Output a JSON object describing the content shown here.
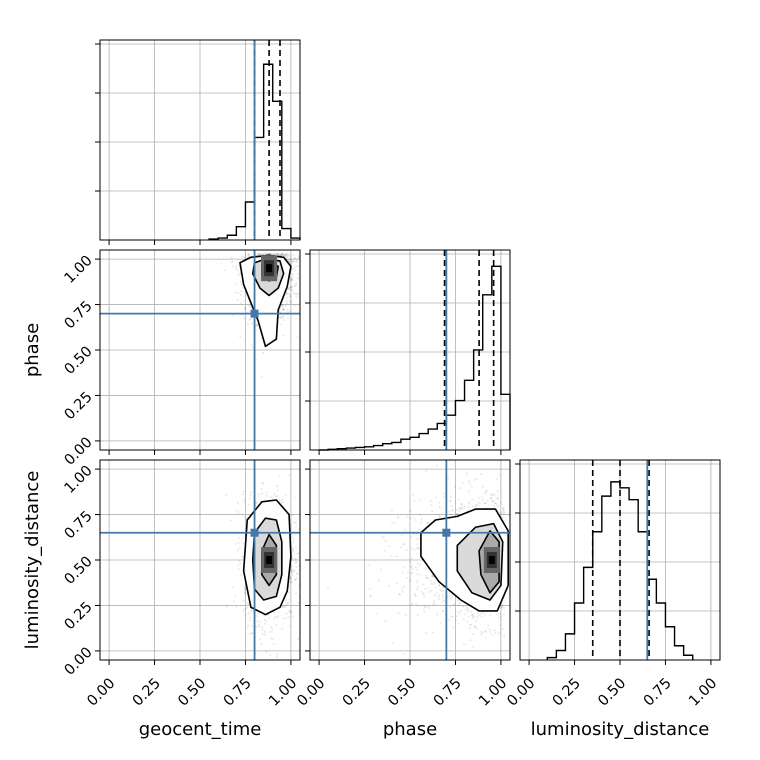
{
  "chart_data": {
    "type": "corner",
    "parameters": [
      "geocent_time",
      "phase",
      "luminosity_distance"
    ],
    "tick_values": [
      0.0,
      0.25,
      0.5,
      0.75,
      1.0
    ],
    "tick_labels": [
      "0.00",
      "0.25",
      "0.50",
      "0.75",
      "1.00"
    ],
    "axis_range": [
      -0.05,
      1.05
    ],
    "grid": true,
    "truth_color": "#4477aa",
    "truths": {
      "geocent_time": 0.8,
      "phase": 0.7,
      "luminosity_distance": 0.65
    },
    "quantiles": {
      "geocent_time": [
        0.8,
        0.88,
        0.94
      ],
      "phase": [
        0.69,
        0.88,
        0.96
      ],
      "luminosity_distance": [
        0.35,
        0.5,
        0.66
      ]
    },
    "histograms": {
      "geocent_time": {
        "edges": [
          0.55,
          0.6,
          0.65,
          0.7,
          0.75,
          0.8,
          0.85,
          0.9,
          0.95,
          1.0,
          1.05
        ],
        "counts": [
          1,
          2,
          5,
          14,
          40,
          108,
          185,
          146,
          12,
          2
        ],
        "ymax": 200
      },
      "phase": {
        "edges": [
          0.0,
          0.05,
          0.1,
          0.15,
          0.2,
          0.25,
          0.3,
          0.35,
          0.4,
          0.45,
          0.5,
          0.55,
          0.6,
          0.65,
          0.7,
          0.75,
          0.8,
          0.85,
          0.9,
          0.95,
          1.0,
          1.05
        ],
        "counts": [
          0,
          1,
          2,
          3,
          4,
          5,
          7,
          10,
          12,
          17,
          20,
          26,
          33,
          42,
          55,
          78,
          110,
          158,
          245,
          290,
          88
        ],
        "ymax": 300
      },
      "luminosity_distance": {
        "edges": [
          0.1,
          0.15,
          0.2,
          0.25,
          0.3,
          0.35,
          0.4,
          0.45,
          0.5,
          0.55,
          0.6,
          0.65,
          0.7,
          0.75,
          0.8,
          0.85,
          0.9
        ],
        "counts": [
          2,
          8,
          22,
          48,
          78,
          108,
          138,
          150,
          145,
          135,
          108,
          68,
          48,
          28,
          12,
          4
        ],
        "ymax": 160
      }
    },
    "scatter_2d": [
      {
        "x": "geocent_time",
        "y": "phase",
        "density_peak": [
          0.88,
          0.95
        ],
        "contours": [
          [
            [
              0.72,
              0.98
            ],
            [
              0.78,
              1.01
            ],
            [
              0.88,
              1.02
            ],
            [
              0.96,
              1.01
            ],
            [
              1.0,
              0.96
            ],
            [
              0.98,
              0.85
            ],
            [
              0.93,
              0.72
            ],
            [
              0.92,
              0.56
            ],
            [
              0.86,
              0.52
            ],
            [
              0.82,
              0.66
            ],
            [
              0.74,
              0.86
            ]
          ],
          [
            [
              0.8,
              0.98
            ],
            [
              0.86,
              1.0
            ],
            [
              0.94,
              0.99
            ],
            [
              0.96,
              0.92
            ],
            [
              0.93,
              0.84
            ],
            [
              0.88,
              0.8
            ],
            [
              0.83,
              0.84
            ],
            [
              0.79,
              0.92
            ]
          ],
          [
            [
              0.84,
              0.97
            ],
            [
              0.89,
              0.98
            ],
            [
              0.93,
              0.96
            ],
            [
              0.92,
              0.9
            ],
            [
              0.88,
              0.88
            ],
            [
              0.84,
              0.91
            ]
          ]
        ]
      },
      {
        "x": "geocent_time",
        "y": "luminosity_distance",
        "density_peak": [
          0.88,
          0.5
        ],
        "contours": [
          [
            [
              0.76,
              0.72
            ],
            [
              0.84,
              0.82
            ],
            [
              0.92,
              0.83
            ],
            [
              0.99,
              0.75
            ],
            [
              1.0,
              0.52
            ],
            [
              0.98,
              0.33
            ],
            [
              0.94,
              0.24
            ],
            [
              0.86,
              0.2
            ],
            [
              0.78,
              0.24
            ],
            [
              0.74,
              0.44
            ]
          ],
          [
            [
              0.8,
              0.65
            ],
            [
              0.86,
              0.73
            ],
            [
              0.92,
              0.72
            ],
            [
              0.95,
              0.6
            ],
            [
              0.95,
              0.42
            ],
            [
              0.92,
              0.3
            ],
            [
              0.85,
              0.28
            ],
            [
              0.8,
              0.34
            ],
            [
              0.79,
              0.5
            ]
          ],
          [
            [
              0.84,
              0.55
            ],
            [
              0.88,
              0.64
            ],
            [
              0.92,
              0.58
            ],
            [
              0.92,
              0.42
            ],
            [
              0.88,
              0.36
            ],
            [
              0.84,
              0.42
            ]
          ]
        ]
      },
      {
        "x": "phase",
        "y": "luminosity_distance",
        "density_peak": [
          0.95,
          0.5
        ],
        "contours": [
          [
            [
              0.56,
              0.65
            ],
            [
              0.64,
              0.72
            ],
            [
              0.76,
              0.74
            ],
            [
              0.86,
              0.78
            ],
            [
              0.97,
              0.78
            ],
            [
              1.04,
              0.66
            ],
            [
              1.04,
              0.36
            ],
            [
              0.98,
              0.22
            ],
            [
              0.88,
              0.22
            ],
            [
              0.78,
              0.28
            ],
            [
              0.66,
              0.38
            ],
            [
              0.56,
              0.52
            ]
          ],
          [
            [
              0.76,
              0.58
            ],
            [
              0.86,
              0.68
            ],
            [
              0.96,
              0.7
            ],
            [
              1.01,
              0.6
            ],
            [
              1.0,
              0.36
            ],
            [
              0.94,
              0.28
            ],
            [
              0.84,
              0.32
            ],
            [
              0.76,
              0.44
            ]
          ],
          [
            [
              0.88,
              0.55
            ],
            [
              0.94,
              0.66
            ],
            [
              0.99,
              0.6
            ],
            [
              0.99,
              0.38
            ],
            [
              0.94,
              0.32
            ],
            [
              0.89,
              0.42
            ]
          ]
        ]
      }
    ]
  }
}
